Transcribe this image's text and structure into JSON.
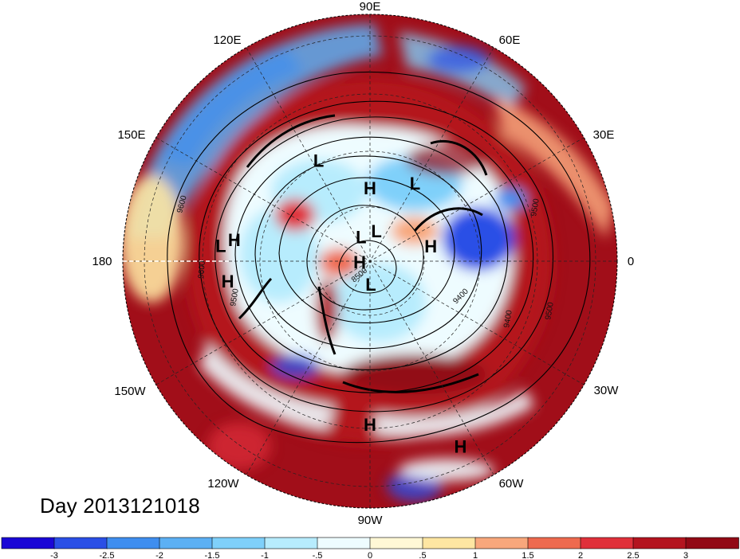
{
  "caption": "Day 2013121018",
  "longitude_labels": [
    "90E",
    "60E",
    "30E",
    "0",
    "30W",
    "60W",
    "90W",
    "120W",
    "150W",
    "180",
    "150E",
    "120E"
  ],
  "pressure_centers": [
    {
      "type": "H",
      "lon": 90,
      "lat": 62
    },
    {
      "type": "L",
      "lon": 60,
      "lat": 56
    },
    {
      "type": "L",
      "lon": 117,
      "lat": 48
    },
    {
      "type": "L",
      "lon": 174,
      "lat": 36
    },
    {
      "type": "H",
      "lon": 171,
      "lat": 40
    },
    {
      "type": "H",
      "lon": -172,
      "lat": 38
    },
    {
      "type": "L",
      "lon": 110,
      "lat": 80
    },
    {
      "type": "L",
      "lon": 78,
      "lat": 78
    },
    {
      "type": "H",
      "lon": 14,
      "lat": 66
    },
    {
      "type": "H",
      "lon": -176,
      "lat": 86
    },
    {
      "type": "L",
      "lon": -88,
      "lat": 81
    },
    {
      "type": "H",
      "lon": -90,
      "lat": 32
    },
    {
      "type": "H",
      "lon": -64,
      "lat": 20
    }
  ],
  "contour_labels": [
    "9600",
    "9500",
    "8500",
    "9500",
    "9400",
    "9500",
    "9400",
    "9600"
  ],
  "colorbar": {
    "ticks": [
      "-3",
      "-2.5",
      "-2",
      "-1.5",
      "-1",
      "-.5",
      "0",
      ".5",
      "1",
      "1.5",
      "2",
      "2.5",
      "3"
    ],
    "colors": [
      "#1a06d6",
      "#2a4fe6",
      "#3f8eef",
      "#5cb0f4",
      "#7fd0fa",
      "#b7ecfd",
      "#eefcff",
      "#fff8d6",
      "#fee6a2",
      "#f8a77c",
      "#ee6a4f",
      "#e0303a",
      "#b4141f",
      "#920815"
    ]
  }
}
